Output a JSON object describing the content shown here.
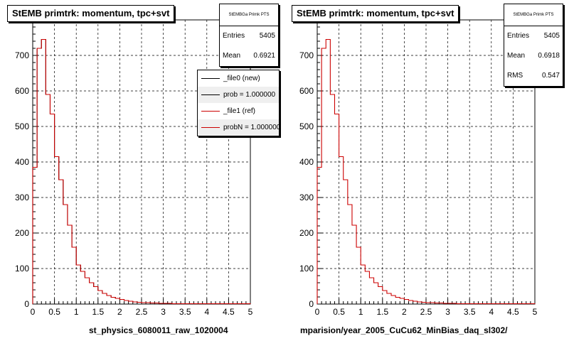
{
  "colors": {
    "new": "#000000",
    "ref": "#cc0000",
    "grid": "#000000"
  },
  "chart_data": [
    {
      "type": "histogram",
      "title": "StEMB primtrk: momentum, tpc+svt",
      "xlabel": "st_physics_6080011_raw_1020004",
      "xlim": [
        0,
        5
      ],
      "ylim": [
        0,
        800
      ],
      "xticks": [
        "0",
        "0.5",
        "1",
        "1.5",
        "2",
        "2.5",
        "3",
        "3.5",
        "4",
        "4.5",
        "5"
      ],
      "yticks": [
        "0",
        "100",
        "200",
        "300",
        "400",
        "500",
        "600",
        "700"
      ],
      "grid": "dashed",
      "bin_width": 0.1,
      "series": [
        {
          "name": "_file0 (new)",
          "color": "#000000",
          "values": [
            385,
            720,
            745,
            590,
            535,
            415,
            350,
            280,
            222,
            160,
            110,
            92,
            74,
            60,
            49,
            38,
            30,
            24,
            19,
            16,
            13,
            10,
            8,
            6,
            5,
            4,
            4,
            3,
            3,
            2,
            2,
            2,
            1,
            1,
            1,
            1,
            1,
            1,
            1,
            1,
            1,
            1,
            1,
            1,
            1,
            1,
            1,
            1,
            1,
            1
          ]
        },
        {
          "name": "_file1 (ref)",
          "color": "#cc0000",
          "values": [
            385,
            720,
            745,
            590,
            535,
            415,
            350,
            280,
            222,
            160,
            110,
            92,
            74,
            60,
            49,
            38,
            30,
            24,
            19,
            16,
            13,
            10,
            8,
            6,
            5,
            4,
            4,
            3,
            3,
            2,
            2,
            2,
            1,
            1,
            1,
            1,
            1,
            1,
            1,
            1,
            1,
            1,
            1,
            1,
            1,
            1,
            1,
            1,
            1,
            1
          ]
        }
      ],
      "stats": {
        "header": "StEMBGa Primk PTS",
        "entries_label": "Entries",
        "entries": "5405",
        "mean_label": "Mean",
        "mean": "0.6921"
      },
      "legend": [
        "_file0 (new)",
        "prob = 1.000000",
        "_file1 (ref)",
        "probN = 1.000000"
      ]
    },
    {
      "type": "histogram",
      "title": "StEMB primtrk: momentum, tpc+svt",
      "xlabel": "mparision/year_2005_CuCu62_MinBias_daq_sl302/",
      "xlim": [
        0,
        5
      ],
      "ylim": [
        0,
        800
      ],
      "xticks": [
        "0",
        "0.5",
        "1",
        "1.5",
        "2",
        "2.5",
        "3",
        "3.5",
        "4",
        "4.5",
        "5"
      ],
      "yticks": [
        "0",
        "100",
        "200",
        "300",
        "400",
        "500",
        "600",
        "700"
      ],
      "grid": "dashed",
      "bin_width": 0.1,
      "series": [
        {
          "color": "#cc0000",
          "values": [
            385,
            720,
            745,
            590,
            535,
            415,
            350,
            280,
            222,
            160,
            110,
            92,
            74,
            60,
            49,
            38,
            30,
            24,
            19,
            16,
            13,
            10,
            8,
            6,
            5,
            4,
            4,
            3,
            3,
            2,
            2,
            2,
            1,
            1,
            1,
            1,
            1,
            1,
            1,
            1,
            1,
            1,
            1,
            1,
            1,
            1,
            1,
            1,
            1,
            1
          ]
        }
      ],
      "stats": {
        "header": "StEMBGa Primk PTS",
        "entries_label": "Entries",
        "entries": "5405",
        "mean_label": "Mean",
        "mean": "0.6918",
        "rms_label": "RMS",
        "rms": "0.547"
      }
    }
  ]
}
